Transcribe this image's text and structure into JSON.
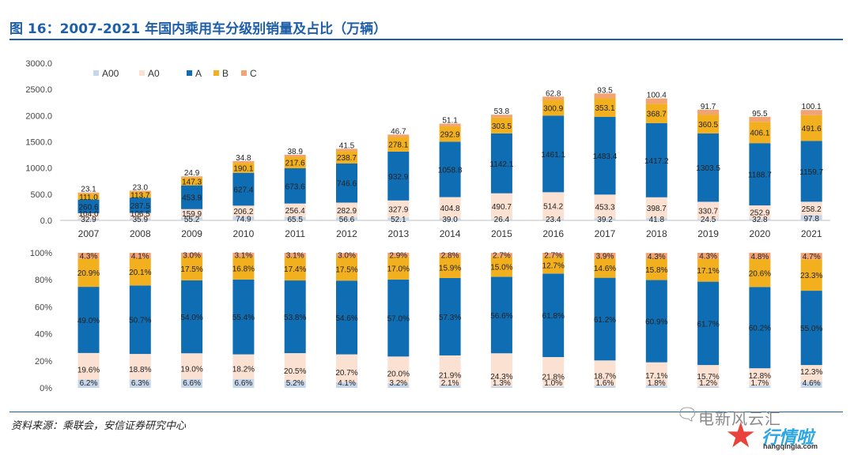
{
  "figure": {
    "title": "图 16：2007-2021 年国内乘用车分级别销量及占比（万辆）",
    "source": "资料来源：乘联会，安信证券研究中心"
  },
  "watermark": {
    "line1": "电新风云汇",
    "brand": "行情啦",
    "url": "hangqingla.com"
  },
  "colors": {
    "A00": "#c6d7ec",
    "A0": "#fbe1d2",
    "A": "#0f6db3",
    "B": "#f2b01f",
    "C": "#f2a374"
  },
  "chart_data": [
    {
      "type": "bar",
      "stacked": true,
      "title": "",
      "xlabel": "",
      "ylabel": "",
      "ylim": [
        0,
        3000
      ],
      "yticks": [
        "0.0",
        "500.0",
        "1000.0",
        "1500.0",
        "2000.0",
        "2500.0",
        "3000.0"
      ],
      "legend": "top-left",
      "categories": [
        "2007",
        "2008",
        "2009",
        "2010",
        "2011",
        "2012",
        "2013",
        "2014",
        "2015",
        "2016",
        "2017",
        "2018",
        "2019",
        "2020",
        "2021"
      ],
      "series": [
        {
          "name": "A00",
          "values": [
            32.9,
            35.9,
            55.2,
            74.9,
            65.5,
            56.6,
            52.1,
            39.0,
            26.4,
            23.4,
            39.2,
            41.8,
            24.5,
            32.8,
            97.8
          ],
          "labels": [
            "32.9",
            "35.9",
            "55.2",
            "74.9",
            "65.5",
            "56.6",
            "52.1",
            "39.0",
            "26.4",
            "23.4",
            "39.2",
            "41.8",
            "24.5",
            "32.8",
            "97.8"
          ]
        },
        {
          "name": "A0",
          "values": [
            104.0,
            106.5,
            159.9,
            206.2,
            256.4,
            282.9,
            327.9,
            404.8,
            490.7,
            514.2,
            453.3,
            398.7,
            330.7,
            252.9,
            258.2
          ],
          "labels": [
            "104.0",
            "106.5",
            "159.9",
            "206.2",
            "256.4",
            "282.9",
            "327.9",
            "404.8",
            "490.7",
            "514.2",
            "453.3",
            "398.7",
            "330.7",
            "252.9",
            "258.2"
          ]
        },
        {
          "name": "A",
          "values": [
            260.6,
            287.5,
            453.9,
            627.4,
            673.6,
            746.6,
            932.9,
            1058.8,
            1142.1,
            1461.1,
            1483.4,
            1417.2,
            1303.5,
            1188.7,
            1159.7
          ],
          "labels": [
            "260.6",
            "287.5",
            "453.9",
            "627.4",
            "673.6",
            "746.6",
            "932.9",
            "1058.8",
            "1142.1",
            "1461.1",
            "1483.4",
            "1417.2",
            "1303.5",
            "1188.7",
            "1159.7"
          ]
        },
        {
          "name": "B",
          "values": [
            111.0,
            113.7,
            147.3,
            190.1,
            217.6,
            238.7,
            278.1,
            292.9,
            303.5,
            300.9,
            353.1,
            368.7,
            360.5,
            406.1,
            491.6
          ],
          "labels": [
            "111.0",
            "113.7",
            "147.3",
            "190.1",
            "217.6",
            "238.7",
            "278.1",
            "292.9",
            "303.5",
            "300.9",
            "353.1",
            "368.7",
            "360.5",
            "406.1",
            "491.6"
          ]
        },
        {
          "name": "C",
          "values": [
            23.1,
            23.0,
            24.9,
            34.8,
            38.9,
            41.5,
            46.7,
            51.1,
            53.8,
            62.8,
            93.5,
            100.4,
            91.7,
            95.5,
            100.1
          ],
          "labels": [
            "23.1",
            "23.0",
            "24.9",
            "34.8",
            "38.9",
            "41.5",
            "46.7",
            "51.1",
            "53.8",
            "62.8",
            "93.5",
            "100.4",
            "91.7",
            "95.5",
            "100.1"
          ]
        }
      ]
    },
    {
      "type": "bar",
      "stacked": true,
      "percent": true,
      "title": "",
      "xlabel": "",
      "ylabel": "",
      "ylim": [
        0,
        100
      ],
      "yticks": [
        "0%",
        "20%",
        "40%",
        "60%",
        "80%",
        "100%"
      ],
      "categories": [
        "2007",
        "2008",
        "2009",
        "2010",
        "2011",
        "2012",
        "2013",
        "2014",
        "2015",
        "2016",
        "2017",
        "2018",
        "2019",
        "2020",
        "2021"
      ],
      "series": [
        {
          "name": "A00",
          "values": [
            6.2,
            6.3,
            6.6,
            6.6,
            5.2,
            4.1,
            3.2,
            2.1,
            1.3,
            1.0,
            1.6,
            1.8,
            1.2,
            1.7,
            4.6
          ],
          "labels": [
            "6.2%",
            "6.3%",
            "6.6%",
            "6.6%",
            "5.2%",
            "4.1%",
            "3.2%",
            "2.1%",
            "1.3%",
            "1.0%",
            "1.6%",
            "1.8%",
            "1.2%",
            "1.7%",
            "4.6%"
          ]
        },
        {
          "name": "A0",
          "values": [
            19.6,
            18.8,
            19.0,
            18.2,
            20.5,
            20.7,
            20.0,
            21.9,
            24.3,
            21.8,
            18.7,
            17.1,
            15.7,
            12.8,
            12.3
          ],
          "labels": [
            "19.6%",
            "18.8%",
            "19.0%",
            "18.2%",
            "20.5%",
            "20.7%",
            "20.0%",
            "21.9%",
            "24.3%",
            "21.8%",
            "18.7%",
            "17.1%",
            "15.7%",
            "12.8%",
            "12.3%"
          ]
        },
        {
          "name": "A",
          "values": [
            49.0,
            50.7,
            54.0,
            55.4,
            53.8,
            54.6,
            57.0,
            57.3,
            56.6,
            61.8,
            61.2,
            60.9,
            61.7,
            60.2,
            55.0
          ],
          "labels": [
            "49.0%",
            "50.7%",
            "54.0%",
            "55.4%",
            "53.8%",
            "54.6%",
            "57.0%",
            "57.3%",
            "56.6%",
            "61.8%",
            "61.2%",
            "60.9%",
            "61.7%",
            "60.2%",
            "55.0%"
          ]
        },
        {
          "name": "B",
          "values": [
            20.9,
            20.1,
            17.5,
            16.8,
            17.4,
            17.5,
            17.0,
            15.9,
            15.0,
            12.7,
            14.6,
            15.8,
            17.1,
            20.6,
            23.3
          ],
          "labels": [
            "20.9%",
            "20.1%",
            "17.5%",
            "16.8%",
            "17.4%",
            "17.5%",
            "17.0%",
            "15.9%",
            "15.0%",
            "12.7%",
            "14.6%",
            "15.8%",
            "17.1%",
            "20.6%",
            "23.3%"
          ]
        },
        {
          "name": "C",
          "values": [
            4.3,
            4.1,
            3.0,
            3.1,
            3.1,
            3.0,
            2.9,
            2.8,
            2.7,
            2.7,
            3.9,
            4.3,
            4.3,
            4.8,
            4.7
          ],
          "labels": [
            "4.3%",
            "4.1%",
            "3.0%",
            "3.1%",
            "3.1%",
            "3.0%",
            "2.9%",
            "2.8%",
            "2.7%",
            "2.7%",
            "3.9%",
            "4.3%",
            "4.3%",
            "4.8%",
            "4.7%"
          ]
        }
      ]
    }
  ]
}
